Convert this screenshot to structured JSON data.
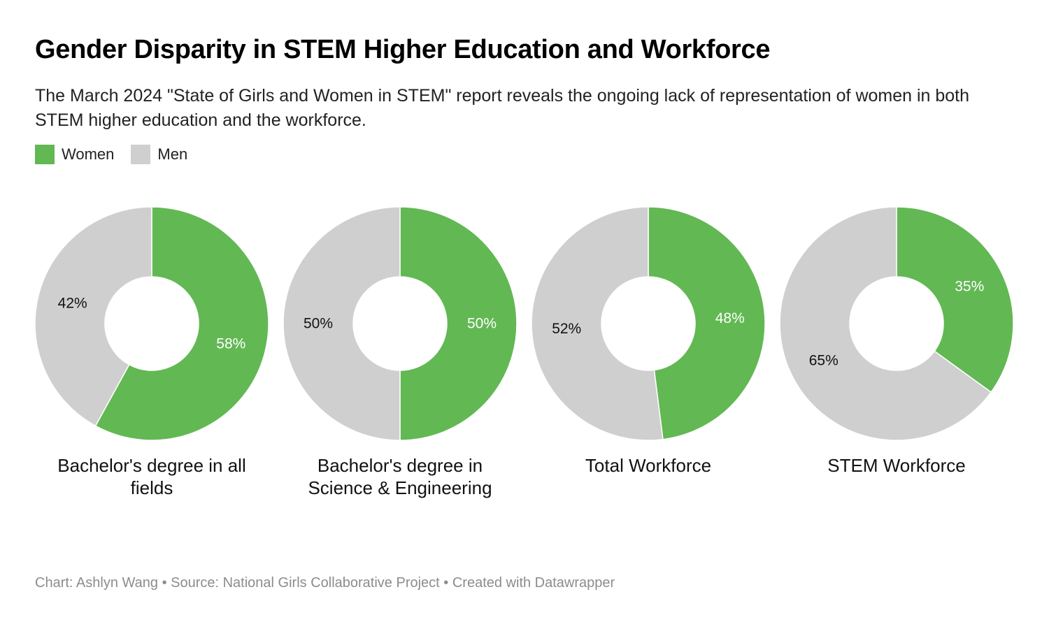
{
  "title": "Gender Disparity in STEM Higher Education and Workforce",
  "subtitle": "The March 2024 \"State of Girls and Women in STEM\" report reveals the ongoing lack of representation of women in both STEM higher education and the workforce.",
  "legend": [
    {
      "label": "Women",
      "color": "#62b853"
    },
    {
      "label": "Men",
      "color": "#cfcfcf"
    }
  ],
  "footer": "Chart: Ashlyn Wang • Source: National Girls Collaborative Project • Created with Datawrapper",
  "chart_data": [
    {
      "type": "pie",
      "title": "Bachelor's degree in all fields",
      "slices": [
        {
          "name": "Women",
          "value": 58,
          "label": "58%"
        },
        {
          "name": "Men",
          "value": 42,
          "label": "42%"
        }
      ]
    },
    {
      "type": "pie",
      "title": "Bachelor's degree in Science & Engineering",
      "slices": [
        {
          "name": "Women",
          "value": 50,
          "label": "50%"
        },
        {
          "name": "Men",
          "value": 50,
          "label": "50%"
        }
      ]
    },
    {
      "type": "pie",
      "title": "Total Workforce",
      "slices": [
        {
          "name": "Women",
          "value": 48,
          "label": "48%"
        },
        {
          "name": "Men",
          "value": 52,
          "label": "52%"
        }
      ]
    },
    {
      "type": "pie",
      "title": "STEM Workforce",
      "slices": [
        {
          "name": "Women",
          "value": 35,
          "label": "35%"
        },
        {
          "name": "Men",
          "value": 65,
          "label": "65%"
        }
      ]
    }
  ]
}
